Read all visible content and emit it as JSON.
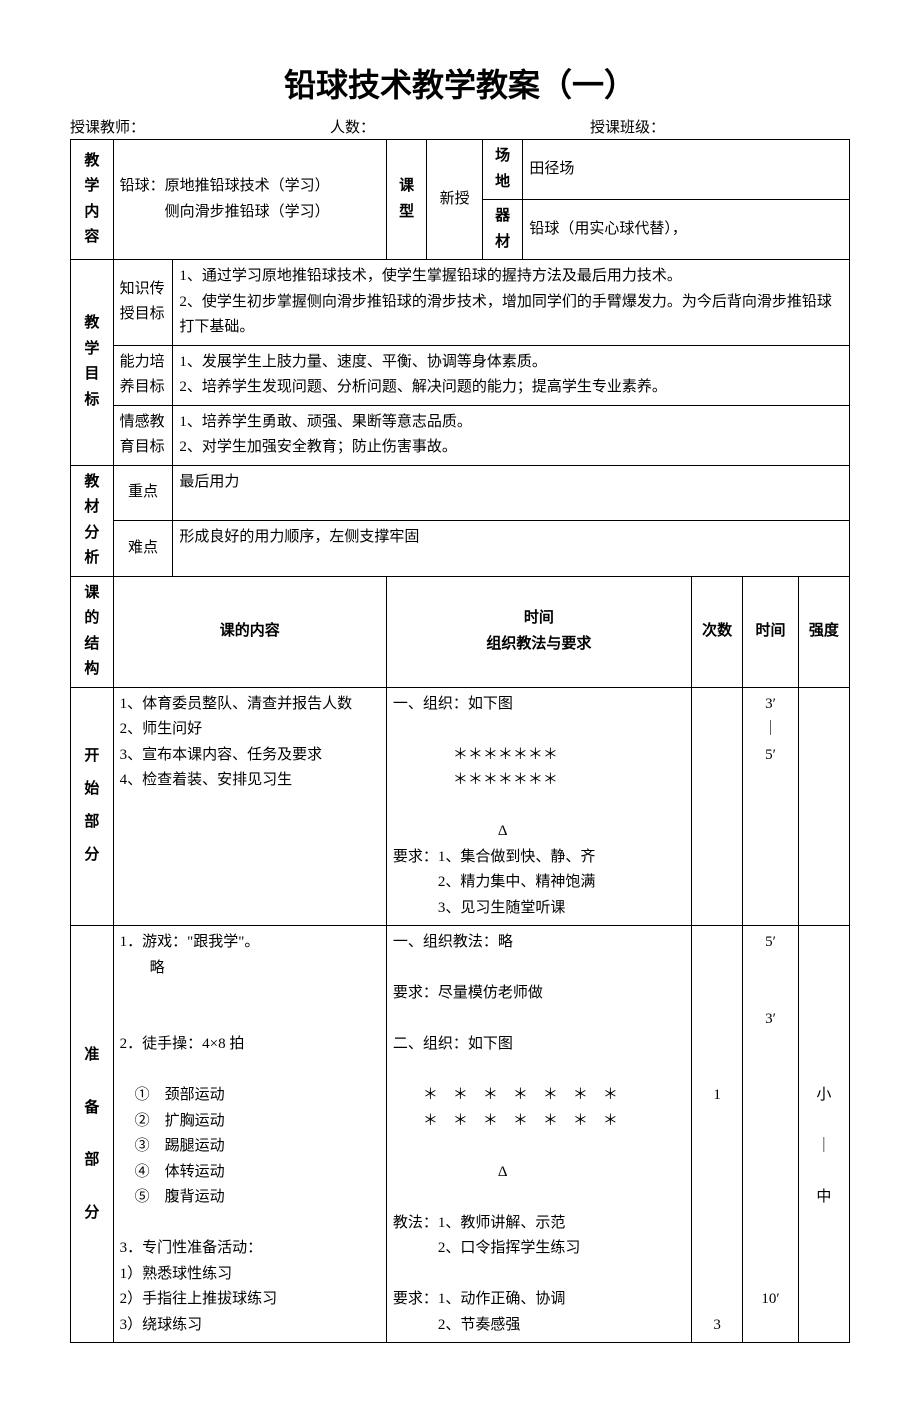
{
  "title": "铅球技术教学教案（一）",
  "meta": {
    "teacher_label": "授课教师：",
    "count_label": "人数：",
    "class_label": "授课班级："
  },
  "row_content": {
    "label": "教学内容",
    "text": "铅球：原地推铅球技术（学习）\n　　　侧向滑步推铅球（学习）",
    "type_label": "课型",
    "type_value": "新授",
    "venue_label": "场地",
    "venue_value": "田径场",
    "equip_label": "器材",
    "equip_value": "铅球（用实心球代替），"
  },
  "goals": {
    "label": "教学目标",
    "knowledge_label": "知识传授目标",
    "knowledge_text": "1、通过学习原地推铅球技术，使学生掌握铅球的握持方法及最后用力技术。\n2、使学生初步掌握侧向滑步推铅球的滑步技术，增加同学们的手臂爆发力。为今后背向滑步推铅球打下基础。",
    "ability_label": "能力培养目标",
    "ability_text": "1、发展学生上肢力量、速度、平衡、协调等身体素质。\n2、培养学生发现问题、分析问题、解决问题的能力；提高学生专业素养。",
    "emotion_label": "情感教育目标",
    "emotion_text": "1、培养学生勇敢、顽强、果断等意志品质。\n2、对学生加强安全教育；防止伤害事故。"
  },
  "analysis": {
    "label": "教材分析",
    "key_label": "重点",
    "key_text": "最后用力",
    "diff_label": "难点",
    "diff_text": "形成良好的用力顺序，左侧支撑牢固"
  },
  "structure_header": {
    "structure": "课的结构",
    "content": "课的内容",
    "method_top": "时间",
    "method_bottom": "组织教法与要求",
    "count": "次数",
    "time": "时间",
    "intensity": "强度"
  },
  "start": {
    "label_chars": [
      "开",
      "始",
      "部",
      "分"
    ],
    "content": "1、体育委员整队、清查并报告人数\n2、师生问好\n3、宣布本课内容、任务及要求\n4、检查着装、安排见习生",
    "method": "一、组织：如下图\n\n　　　　＊＊＊＊＊＊＊\n　　　　＊＊＊＊＊＊＊\n\n　　　　　　　Δ\n要求：1、集合做到快、静、齐\n　　　2、精力集中、精神饱满\n　　　3、见习生随堂听课",
    "count": "",
    "time": "3′\n｜\n5′",
    "intensity": ""
  },
  "prep": {
    "label_chars": [
      "准",
      "备",
      "部",
      "分"
    ],
    "content": "1．游戏：\"跟我学\"。\n　　略\n\n\n2．徒手操：4×8 拍\n\n　①　颈部运动\n　②　扩胸运动\n　③　踢腿运动\n　④　体转运动\n　⑤　腹背运动\n\n3．专门性准备活动：\n1）熟悉球性练习\n2）手指往上推拔球练习\n3）绕球练习",
    "method": "一、组织教法：略\n\n要求：尽量模仿老师做\n\n二、组织：如下图\n\n　　＊　＊　＊　＊　＊　＊　＊\n　　＊　＊　＊　＊　＊　＊　＊\n\n　　　　　　　Δ\n\n教法：1、教师讲解、示范\n　　　2、口令指挥学生练习\n\n要求：1、动作正确、协调\n　　　2、节奏感强",
    "count": "\n\n\n\n\n\n1\n\n\n\n\n\n\n\n\n3",
    "time": "5′\n\n\n3′\n\n\n\n\n\n\n\n\n\n\n10′",
    "intensity": "\n\n\n\n\n\n小\n\n｜\n\n中"
  }
}
